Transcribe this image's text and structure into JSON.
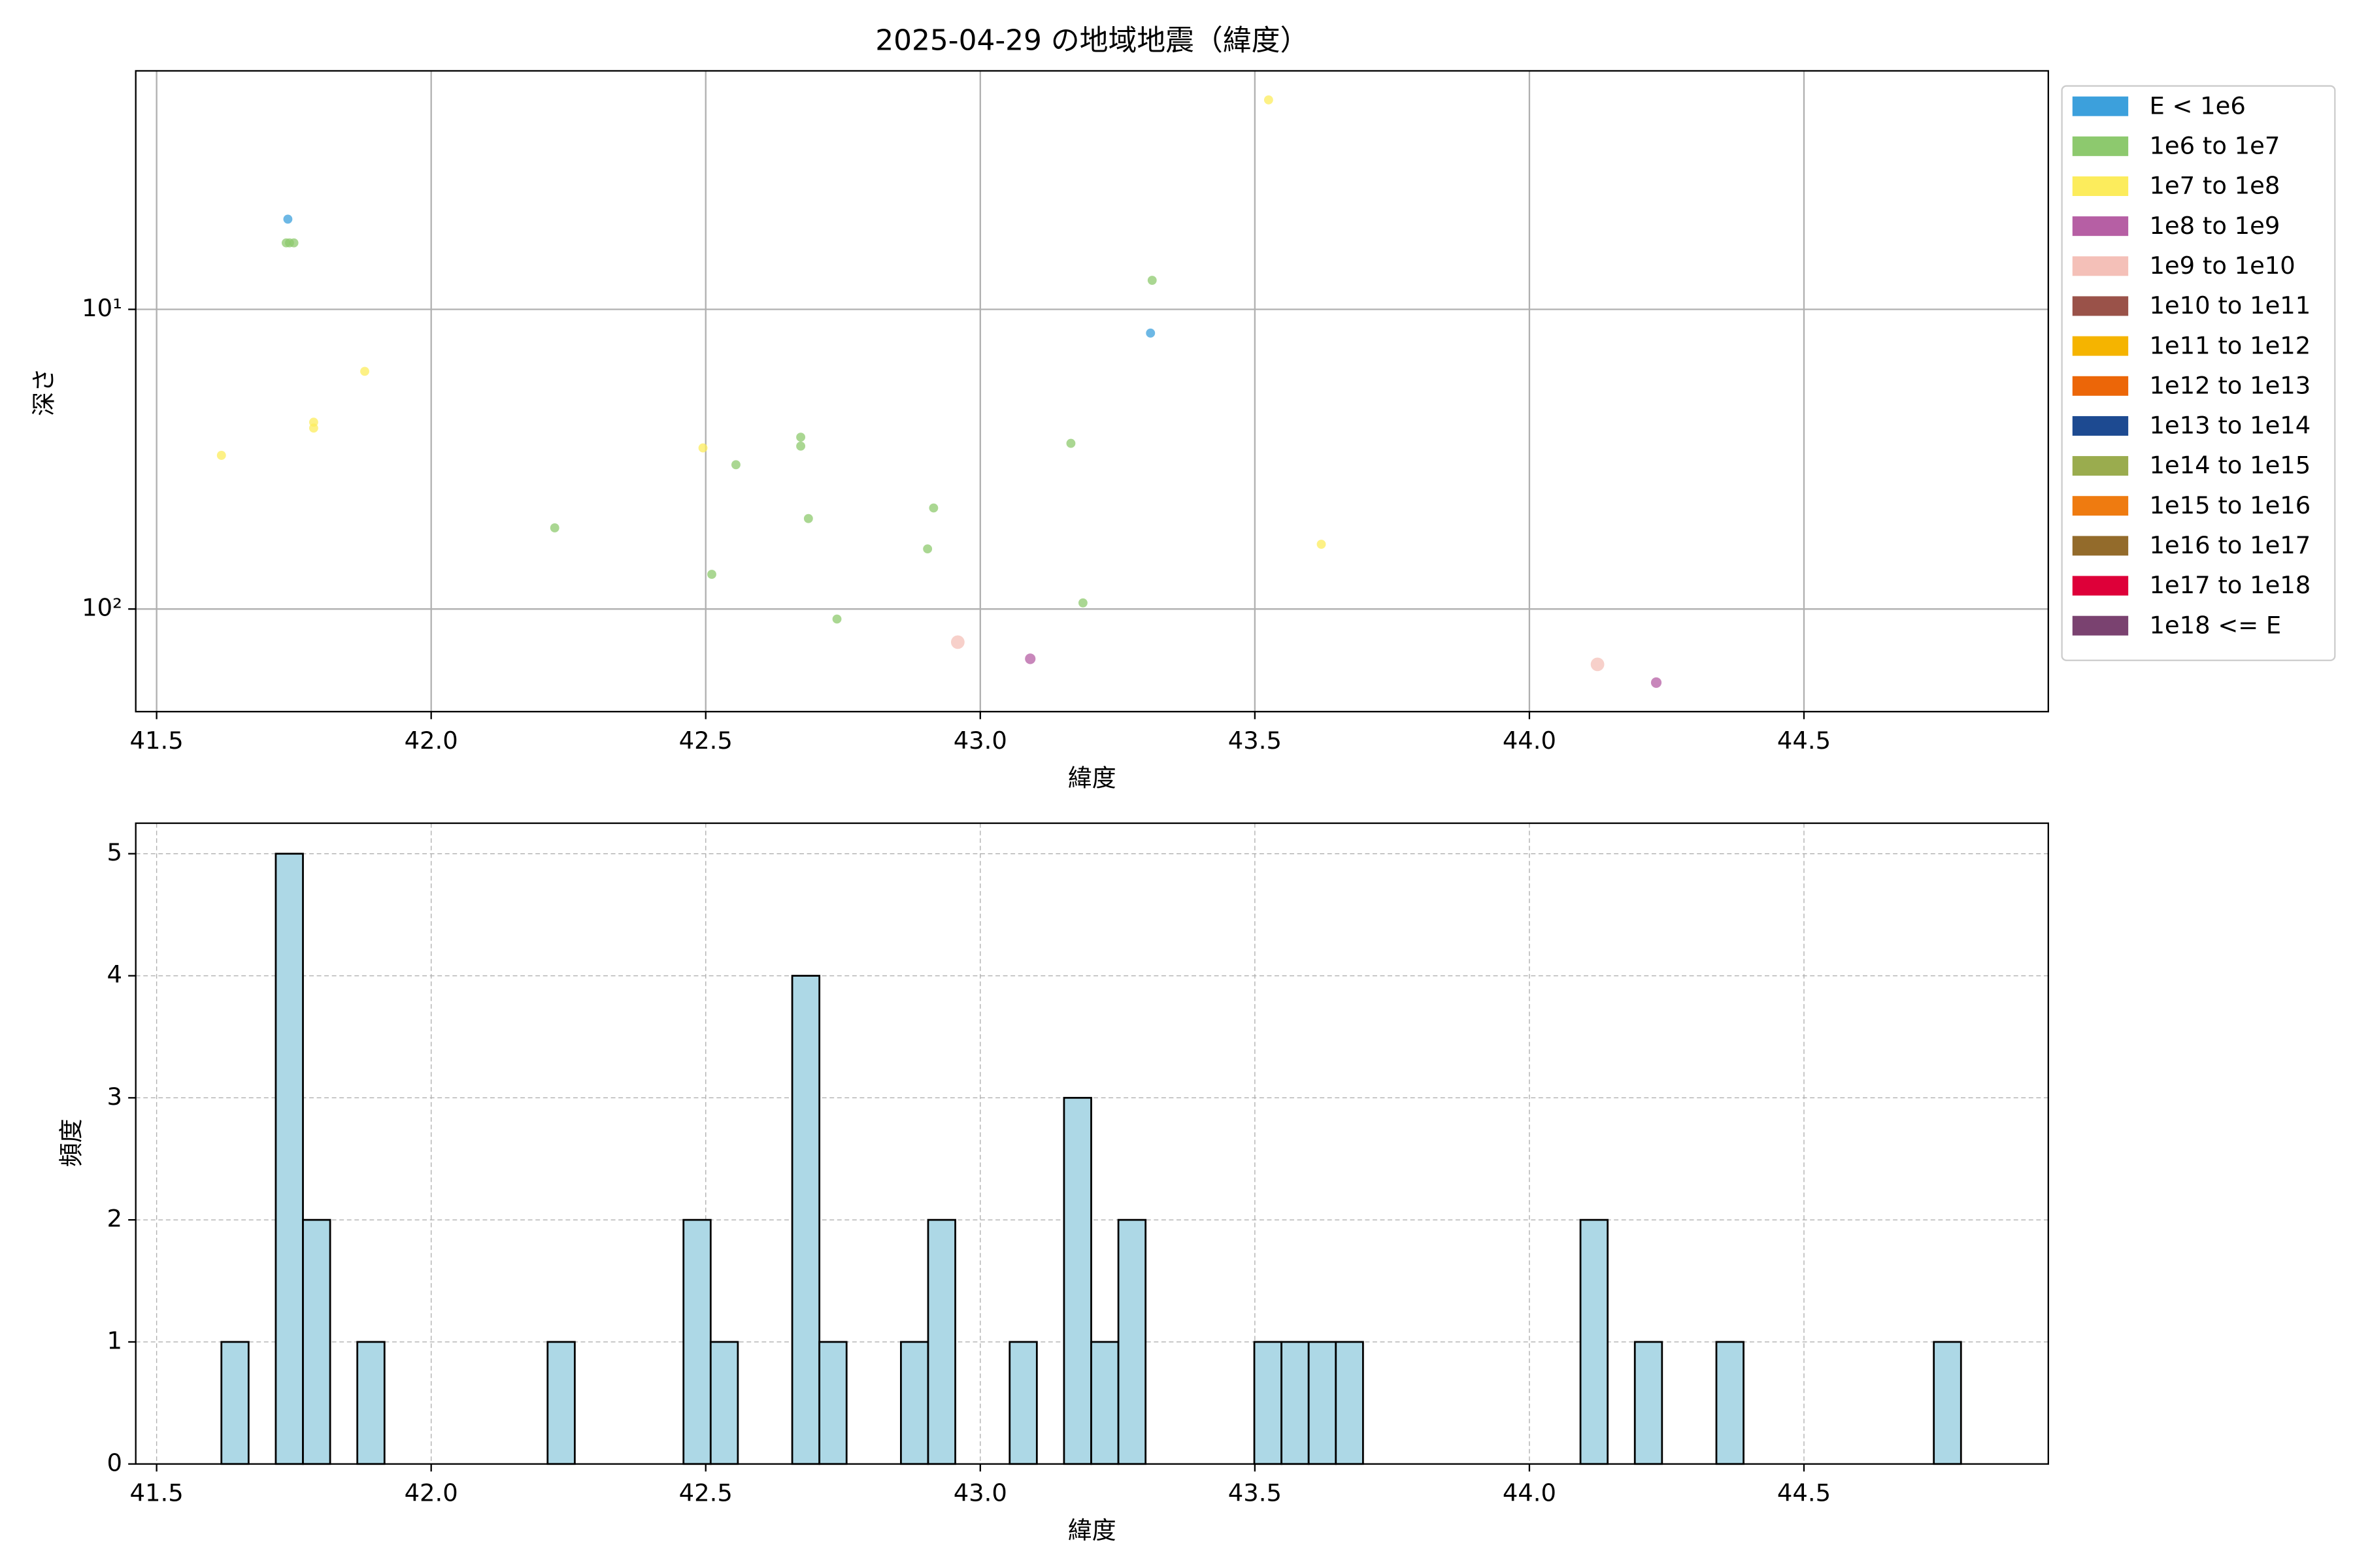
{
  "chart_data": [
    {
      "type": "scatter",
      "title": "2025-04-29 の地域地震（緯度）",
      "xlabel": "緯度",
      "ylabel": "深さ",
      "xlim": [
        41.462,
        44.945
      ],
      "ylim": [
        1.6,
        220
      ],
      "y_log": true,
      "y_inverted": true,
      "xticks": [
        41.5,
        {
          "value": 42,
          "label": "42.0"
        },
        42.5,
        {
          "value": 43,
          "label": "43.0"
        },
        43.5,
        {
          "value": 44,
          "label": "44.0"
        },
        44.5
      ],
      "yticks": [
        {
          "value": 10,
          "label": "10¹"
        },
        {
          "value": 100,
          "label": "10²"
        }
      ],
      "grid": true,
      "legend": "right",
      "series": [
        {
          "name": "E < 1e6",
          "color": "#3ca0dc",
          "marker_size": 3,
          "x": [
            41.739,
            43.31
          ],
          "values": [
            5,
            12
          ]
        },
        {
          "name": "1e6 to 1e7",
          "color": "#8dc96e",
          "marker_size": 3,
          "x": [
            41.736,
            41.742,
            41.75,
            43.313,
            42.225,
            42.555,
            42.673,
            42.673,
            42.687,
            42.915,
            42.904,
            43.165,
            42.511,
            42.739,
            43.187
          ],
          "values": [
            6,
            6,
            6,
            8,
            53.6,
            33,
            26.7,
            28.6,
            49.9,
            46,
            63,
            28,
            76.6,
            108,
            95.4
          ]
        },
        {
          "name": "1e7 to 1e8",
          "color": "#fcec5c",
          "marker_size": 3,
          "x": [
            41.618,
            41.786,
            41.786,
            41.879,
            42.495,
            43.525,
            43.621
          ],
          "values": [
            30.7,
            23.8,
            24.9,
            16.1,
            29,
            2,
            60.8
          ]
        },
        {
          "name": "1e8 to 1e9",
          "color": "#b65fa4",
          "marker_size": 3.5,
          "x": [
            43.091,
            44.231
          ],
          "values": [
            146.6,
            176
          ]
        },
        {
          "name": "1e9 to 1e10",
          "color": "#f4c0b8",
          "marker_size": 4.5,
          "x": [
            42.959,
            44.124
          ],
          "values": [
            129,
            153
          ]
        },
        {
          "name": "1e10 to 1e11",
          "color": "#9a5249",
          "marker_size": 5,
          "x": [],
          "values": []
        },
        {
          "name": "1e11 to 1e12",
          "color": "#f5b400",
          "marker_size": 5,
          "x": [],
          "values": []
        },
        {
          "name": "1e12 to 1e13",
          "color": "#ec6608",
          "marker_size": 5,
          "x": [],
          "values": []
        },
        {
          "name": "1e13 to 1e14",
          "color": "#1d4a91",
          "marker_size": 5,
          "x": [],
          "values": []
        },
        {
          "name": "1e14 to 1e15",
          "color": "#9aac4e",
          "marker_size": 5,
          "x": [],
          "values": []
        },
        {
          "name": "1e15 to 1e16",
          "color": "#ef7b10",
          "marker_size": 5,
          "x": [],
          "values": []
        },
        {
          "name": "1e16 to 1e17",
          "color": "#936b2b",
          "marker_size": 5,
          "x": [],
          "values": []
        },
        {
          "name": "1e17 to 1e18",
          "color": "#de0039",
          "marker_size": 5,
          "x": [],
          "values": []
        },
        {
          "name": "1e18 <= E",
          "color": "#7a4270",
          "marker_size": 5,
          "x": [],
          "values": []
        }
      ]
    },
    {
      "type": "histogram",
      "xlabel": "緯度",
      "ylabel": "頻度",
      "xlim": [
        41.462,
        44.945
      ],
      "ylim": [
        0,
        5.25
      ],
      "xticks": [
        41.5,
        {
          "value": 42,
          "label": "42.0"
        },
        42.5,
        {
          "value": 43,
          "label": "43.0"
        },
        43.5,
        {
          "value": 44,
          "label": "44.0"
        },
        44.5
      ],
      "yticks": [
        0,
        1,
        2,
        3,
        4,
        5
      ],
      "grid": true,
      "grid_style": "dashed",
      "color": "#add8e6",
      "edgecolor": "#000000",
      "bins": [
        41.618,
        41.6675,
        41.717,
        41.7665,
        41.816,
        41.8655,
        41.915,
        41.9645,
        42.014,
        42.0635,
        42.113,
        42.1625,
        42.212,
        42.2615,
        42.311,
        42.3605,
        42.41,
        42.4595,
        42.509,
        42.5585,
        42.608,
        42.6575,
        42.707,
        42.7565,
        42.806,
        42.8555,
        42.905,
        42.9545,
        43.004,
        43.0535,
        43.103,
        43.1525,
        43.202,
        43.2515,
        43.301,
        43.3505,
        43.4,
        43.4495,
        43.499,
        43.5485,
        43.598,
        43.6475,
        43.697,
        43.7465,
        43.796,
        43.8455,
        43.895,
        43.9445,
        43.994,
        44.0435,
        44.093,
        44.1425,
        44.192,
        44.2415,
        44.291,
        44.3405,
        44.39,
        44.4395,
        44.489,
        44.5385,
        44.588,
        44.6375,
        44.687,
        44.7365,
        44.786
      ],
      "counts": [
        1,
        0,
        5,
        2,
        0,
        1,
        0,
        0,
        0,
        0,
        0,
        0,
        1,
        0,
        0,
        0,
        0,
        2,
        1,
        0,
        0,
        4,
        1,
        0,
        0,
        1,
        2,
        0,
        0,
        1,
        0,
        3,
        1,
        2,
        0,
        0,
        0,
        0,
        1,
        1,
        1,
        1,
        0,
        0,
        0,
        0,
        0,
        0,
        0,
        0,
        2,
        0,
        1,
        0,
        0,
        1,
        0,
        0,
        0,
        0,
        0,
        0,
        0,
        1
      ]
    }
  ]
}
